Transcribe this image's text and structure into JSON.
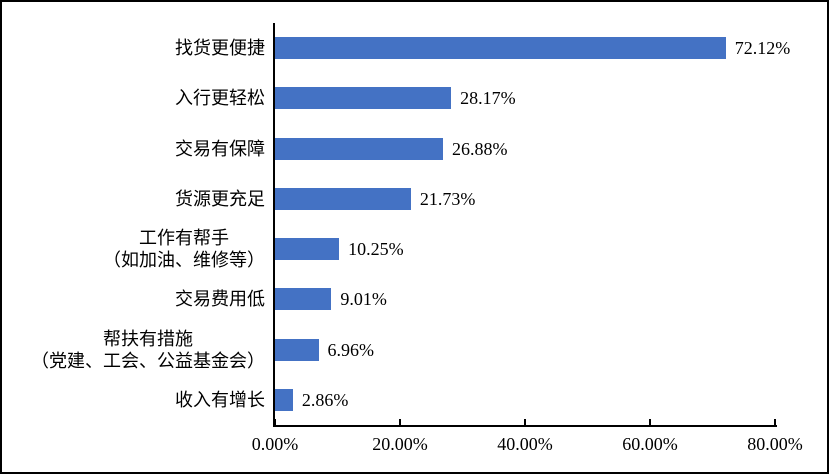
{
  "chart_data": {
    "type": "bar",
    "orientation": "horizontal",
    "title": "",
    "xlabel": "",
    "ylabel": "",
    "categories": [
      "找货更便捷",
      "入行更轻松",
      "交易有保障",
      "货源更充足",
      "工作有帮手\n（如加油、维修等）",
      "交易费用低",
      "帮扶有措施\n（党建、工会、公益基金会）",
      "收入有增长"
    ],
    "values": [
      72.12,
      28.17,
      26.88,
      21.73,
      10.25,
      9.01,
      6.96,
      2.86
    ],
    "value_labels": [
      "72.12%",
      "28.17%",
      "26.88%",
      "21.73%",
      "10.25%",
      "9.01%",
      "6.96%",
      "2.86%"
    ],
    "x_tick_labels": [
      "0.00%",
      "20.00%",
      "40.00%",
      "60.00%",
      "80.00%"
    ],
    "x_tick_values": [
      0,
      20,
      40,
      60,
      80
    ],
    "xlim": [
      0,
      80
    ],
    "grid": false,
    "legend": "none",
    "bar_color": "#4472C4",
    "axis_color": "#000000",
    "text_color": "#000000",
    "background_color": "#FFFFFF"
  }
}
